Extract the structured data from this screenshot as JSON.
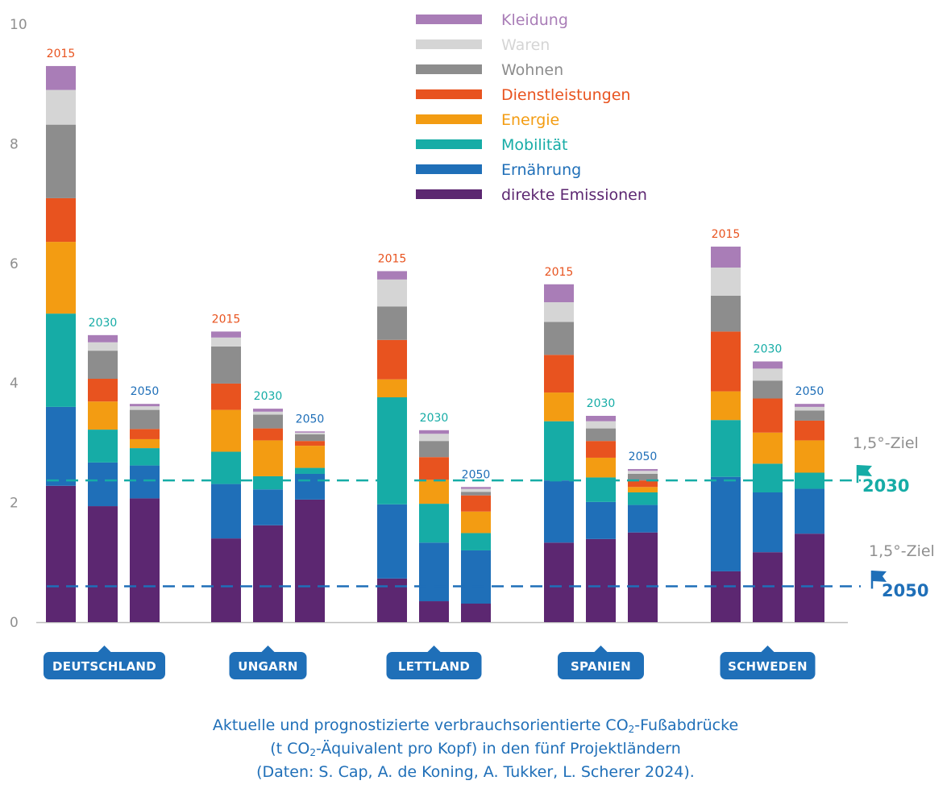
{
  "chart_data": {
    "type": "bar",
    "stacked": true,
    "ylim": [
      0,
      10
    ],
    "yticks": [
      "0",
      "2",
      "4",
      "6",
      "8",
      "10"
    ],
    "years": [
      "2015",
      "2030",
      "2050"
    ],
    "year_colors": {
      "2015": "#e8531f",
      "2030": "#16aca6",
      "2050": "#1f6fb8"
    },
    "groups": [
      {
        "name": "DEUTSCHLAND",
        "bars": [
          {
            "year": "2015",
            "values": [
              2.28,
              1.32,
              1.56,
              1.2,
              0.73,
              1.23,
              0.58,
              0.4
            ]
          },
          {
            "year": "2030",
            "values": [
              1.94,
              0.73,
              0.55,
              0.47,
              0.38,
              0.47,
              0.14,
              0.12
            ]
          },
          {
            "year": "2050",
            "values": [
              2.07,
              0.55,
              0.29,
              0.15,
              0.17,
              0.32,
              0.06,
              0.04
            ]
          }
        ]
      },
      {
        "name": "UNGARN",
        "bars": [
          {
            "year": "2015",
            "values": [
              1.4,
              0.91,
              0.54,
              0.7,
              0.44,
              0.62,
              0.15,
              0.1
            ]
          },
          {
            "year": "2030",
            "values": [
              1.62,
              0.6,
              0.22,
              0.6,
              0.2,
              0.23,
              0.05,
              0.05
            ]
          },
          {
            "year": "2050",
            "values": [
              2.05,
              0.43,
              0.1,
              0.37,
              0.08,
              0.11,
              0.03,
              0.02
            ]
          }
        ]
      },
      {
        "name": "LETTLAND",
        "bars": [
          {
            "year": "2015",
            "values": [
              0.73,
              1.24,
              1.79,
              0.3,
              0.66,
              0.56,
              0.45,
              0.14
            ]
          },
          {
            "year": "2030",
            "values": [
              0.35,
              0.98,
              0.65,
              0.4,
              0.38,
              0.27,
              0.12,
              0.06
            ]
          },
          {
            "year": "2050",
            "values": [
              0.31,
              0.89,
              0.29,
              0.36,
              0.27,
              0.06,
              0.05,
              0.03
            ]
          }
        ]
      },
      {
        "name": "SPANIEN",
        "bars": [
          {
            "year": "2015",
            "values": [
              1.33,
              1.04,
              0.99,
              0.48,
              0.63,
              0.55,
              0.33,
              0.3
            ]
          },
          {
            "year": "2030",
            "values": [
              1.39,
              0.62,
              0.41,
              0.33,
              0.28,
              0.21,
              0.12,
              0.09
            ]
          },
          {
            "year": "2050",
            "values": [
              1.5,
              0.46,
              0.21,
              0.09,
              0.11,
              0.11,
              0.05,
              0.03
            ]
          }
        ]
      },
      {
        "name": "SCHWEDEN",
        "bars": [
          {
            "year": "2015",
            "values": [
              0.85,
              1.58,
              0.95,
              0.48,
              1.0,
              0.6,
              0.47,
              0.35
            ]
          },
          {
            "year": "2030",
            "values": [
              1.17,
              1.0,
              0.48,
              0.52,
              0.57,
              0.3,
              0.2,
              0.12
            ]
          },
          {
            "year": "2050",
            "values": [
              1.48,
              0.75,
              0.27,
              0.54,
              0.33,
              0.17,
              0.06,
              0.05
            ]
          }
        ]
      }
    ],
    "legend": [
      {
        "name": "Kleidung",
        "color": "#a97db7"
      },
      {
        "name": "Waren",
        "color": "#d5d5d5"
      },
      {
        "name": "Wohnen",
        "color": "#8d8d8d"
      },
      {
        "name": "Dienstleistungen",
        "color": "#e8531f"
      },
      {
        "name": "Energie",
        "color": "#f39c12"
      },
      {
        "name": "Mobilität",
        "color": "#16aca6"
      },
      {
        "name": "Ernährung",
        "color": "#1f6fb8"
      },
      {
        "name": "direkte Emissionen",
        "color": "#5c2771"
      }
    ],
    "stack_order": [
      "direkte Emissionen",
      "Ernährung",
      "Mobilität",
      "Energie",
      "Dienstleistungen",
      "Wohnen",
      "Waren",
      "Kleidung"
    ],
    "targets": [
      {
        "label": "1,5°-Ziel",
        "year": "2030",
        "value": 2.37,
        "color": "#16aca6"
      },
      {
        "label": "1,5°-Ziel",
        "year": "2050",
        "value": 0.6,
        "color": "#1f6fb8"
      }
    ],
    "caption": {
      "line1_a": "Aktuelle und prognostizierte verbrauchsorientierte CO",
      "line1_sub": "2",
      "line1_b": "-Fußabdrücke",
      "line2_a": "(t CO",
      "line2_sub": "2",
      "line2_b": "-Äquivalent pro Kopf) in den fünf Projektländern",
      "line3": "(Daten: S. Cap, A. de Koning, A. Tukker, L. Scherer 2024)."
    }
  }
}
